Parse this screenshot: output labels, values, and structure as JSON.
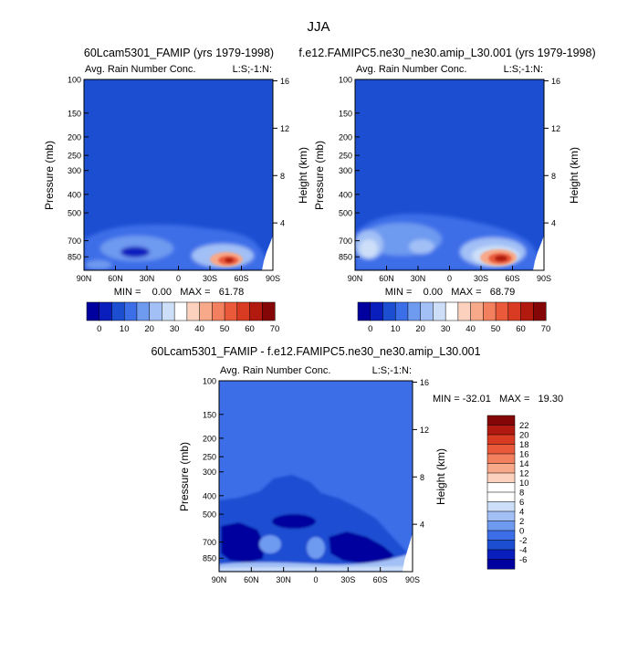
{
  "page": {
    "title": "JJA"
  },
  "colors": {
    "panel_fill": "#1c4ed2",
    "diff_fill": "#3c6ee8",
    "ramp": [
      "#00009e",
      "#0a1ebe",
      "#1c4ed2",
      "#3c6ee8",
      "#6e9af0",
      "#a2c0f6",
      "#cddff8",
      "#ffffff",
      "#fcd2be",
      "#f7a98a",
      "#f2805f",
      "#ea5a3a",
      "#d93a22",
      "#b21a10",
      "#840606"
    ]
  },
  "panels": [
    {
      "case_title": "60Lcam5301_FAMIP (yrs 1979-1998)",
      "variable": "Avg. Rain Number Conc.",
      "units": "L:S;-1:N:",
      "ylabel": "Pressure (mb)",
      "ylabel_right": "Height (km)",
      "xticks": [
        "90N",
        "60N",
        "30N",
        "0",
        "30S",
        "60S",
        "90S"
      ],
      "pressure_ticks": [
        "100",
        "150",
        "200",
        "250",
        "300",
        "400",
        "500",
        "700",
        "850"
      ],
      "height_ticks": [
        "16",
        "12",
        "8",
        "4"
      ],
      "stats": "MIN =    0.00   MAX =   61.78",
      "cbar_labels": [
        "0",
        "10",
        "20",
        "30",
        "40",
        "50",
        "60",
        "70"
      ]
    },
    {
      "case_title": "f.e12.FAMIPC5.ne30_ne30.amip_L30.001 (yrs 1979-1998)",
      "variable": "Avg. Rain Number Conc.",
      "units": "L:S;-1:N:",
      "ylabel": "Pressure (mb)",
      "ylabel_right": "Height (km)",
      "xticks": [
        "90N",
        "60N",
        "30N",
        "0",
        "30S",
        "60S",
        "90S"
      ],
      "pressure_ticks": [
        "100",
        "150",
        "200",
        "250",
        "300",
        "400",
        "500",
        "700",
        "850"
      ],
      "height_ticks": [
        "16",
        "12",
        "8",
        "4"
      ],
      "stats": "MIN =    0.00   MAX =   68.79",
      "cbar_labels": [
        "0",
        "10",
        "20",
        "30",
        "40",
        "50",
        "60",
        "70"
      ]
    },
    {
      "case_title": "60Lcam5301_FAMIP - f.e12.FAMIPC5.ne30_ne30.amip_L30.001",
      "variable": "Avg. Rain Number Conc.",
      "units": "L:S;-1:N:",
      "ylabel": "Pressure (mb)",
      "ylabel_right": "Height (km)",
      "xticks": [
        "90N",
        "60N",
        "30N",
        "0",
        "30S",
        "60S",
        "90S"
      ],
      "pressure_ticks": [
        "100",
        "150",
        "200",
        "250",
        "300",
        "400",
        "500",
        "700",
        "850"
      ],
      "height_ticks": [
        "16",
        "12",
        "8",
        "4"
      ],
      "stats": "MIN = -32.01   MAX =   19.30",
      "cbar_labels": [
        "22",
        "20",
        "18",
        "16",
        "14",
        "12",
        "10",
        "8",
        "6",
        "4",
        "2",
        "0",
        "-2",
        "-4",
        "-6"
      ]
    }
  ],
  "chart_data": [
    {
      "type": "heatmap",
      "title": "60Lcam5301_FAMIP (yrs 1979-1998)",
      "subtitle": "Avg. Rain Number Conc.",
      "xlabel": "",
      "ylabel": "Pressure (mb)",
      "y2label": "Height (km)",
      "x_categories": [
        "90N",
        "60N",
        "30N",
        "0",
        "30S",
        "60S",
        "90S"
      ],
      "y_pressure_ticks": [
        100,
        150,
        200,
        250,
        300,
        400,
        500,
        700,
        850
      ],
      "y_height_ticks": [
        16,
        12,
        8,
        4
      ],
      "min": 0.0,
      "max": 61.78,
      "colorbar_levels": [
        0,
        10,
        20,
        30,
        40,
        50,
        60,
        70
      ]
    },
    {
      "type": "heatmap",
      "title": "f.e12.FAMIPC5.ne30_ne30.amip_L30.001 (yrs 1979-1998)",
      "subtitle": "Avg. Rain Number Conc.",
      "xlabel": "",
      "ylabel": "Pressure (mb)",
      "y2label": "Height (km)",
      "x_categories": [
        "90N",
        "60N",
        "30N",
        "0",
        "30S",
        "60S",
        "90S"
      ],
      "y_pressure_ticks": [
        100,
        150,
        200,
        250,
        300,
        400,
        500,
        700,
        850
      ],
      "y_height_ticks": [
        16,
        12,
        8,
        4
      ],
      "min": 0.0,
      "max": 68.79,
      "colorbar_levels": [
        0,
        10,
        20,
        30,
        40,
        50,
        60,
        70
      ]
    },
    {
      "type": "heatmap",
      "title": "60Lcam5301_FAMIP - f.e12.FAMIPC5.ne30_ne30.amip_L30.001",
      "subtitle": "Avg. Rain Number Conc.",
      "xlabel": "",
      "ylabel": "Pressure (mb)",
      "y2label": "Height (km)",
      "x_categories": [
        "90N",
        "60N",
        "30N",
        "0",
        "30S",
        "60S",
        "90S"
      ],
      "y_pressure_ticks": [
        100,
        150,
        200,
        250,
        300,
        400,
        500,
        700,
        850
      ],
      "y_height_ticks": [
        16,
        12,
        8,
        4
      ],
      "min": -32.01,
      "max": 19.3,
      "colorbar_levels": [
        22,
        20,
        18,
        16,
        14,
        12,
        10,
        8,
        6,
        4,
        2,
        0,
        -2,
        -4,
        -6
      ]
    }
  ]
}
